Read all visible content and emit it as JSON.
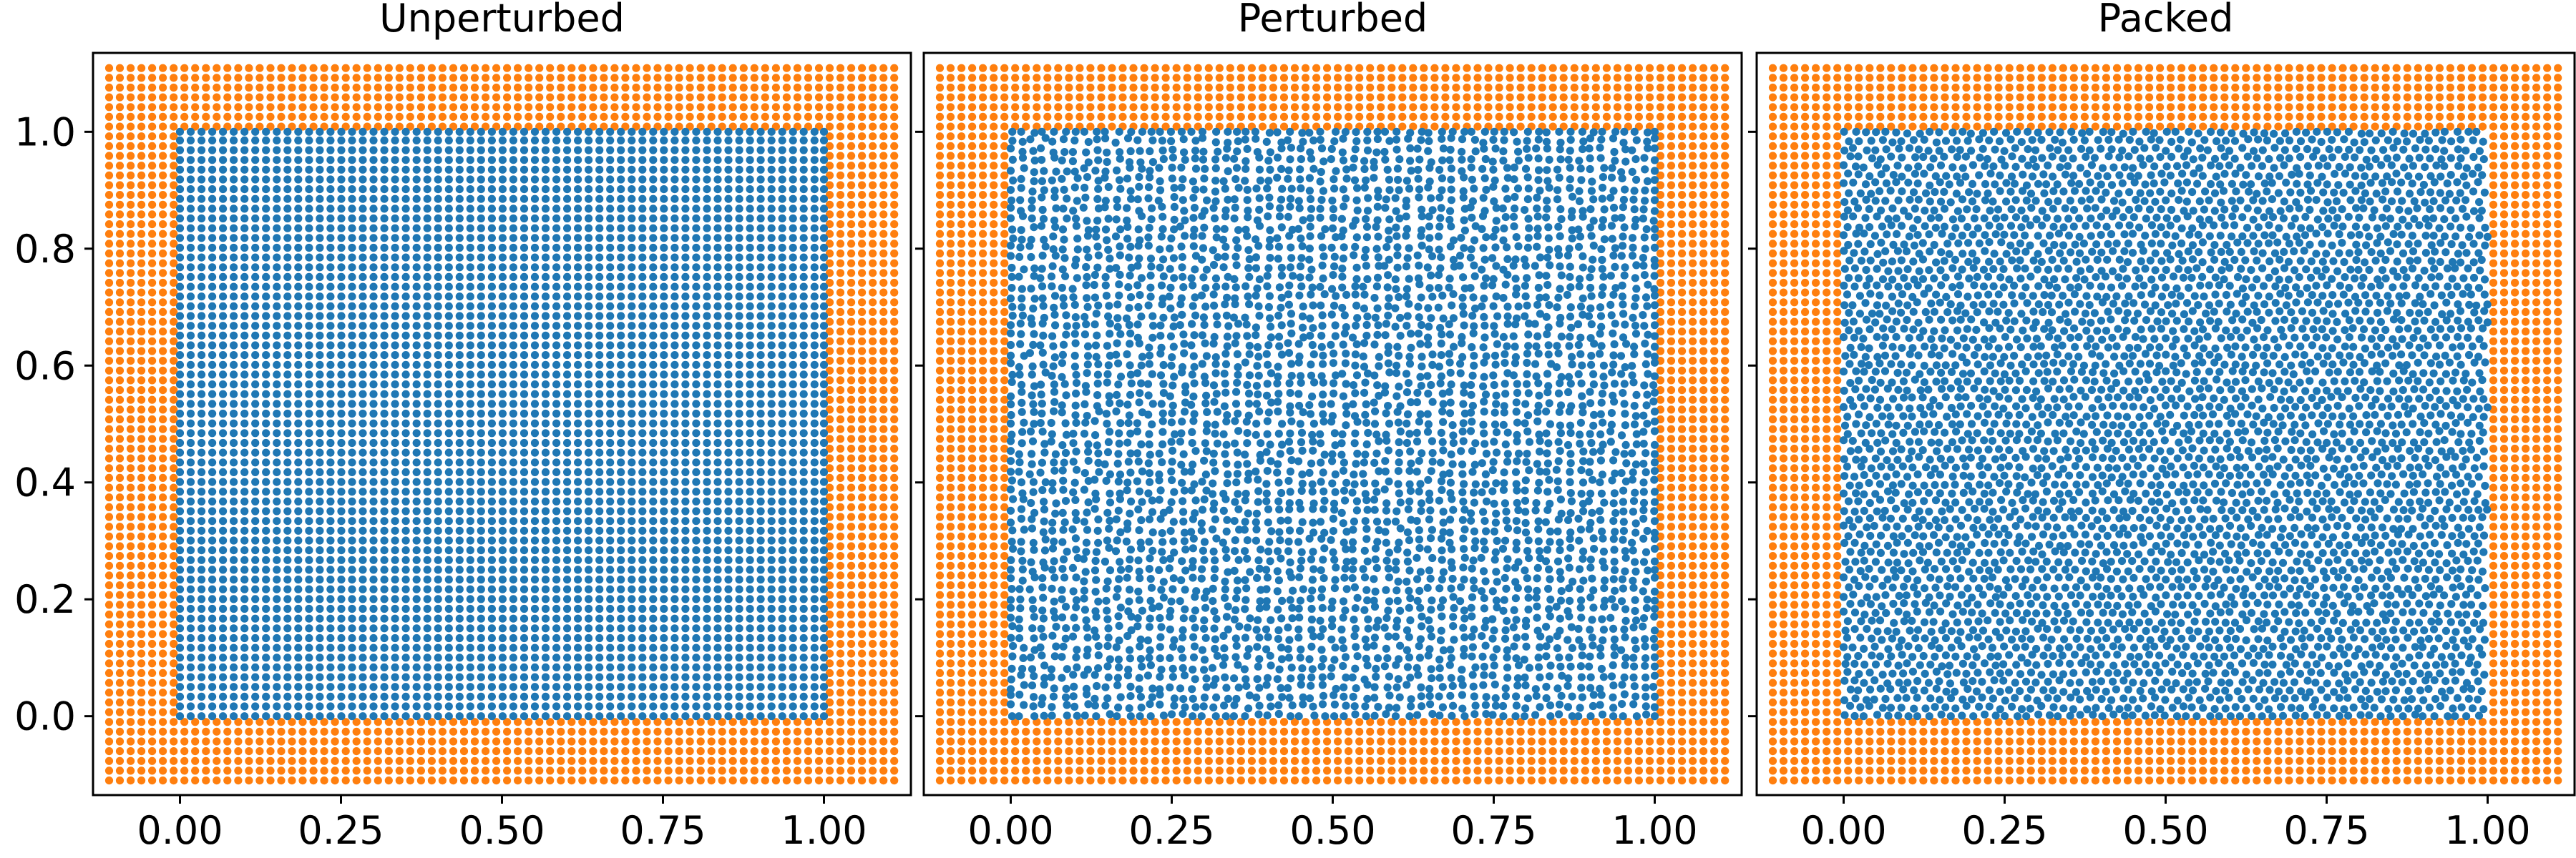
{
  "chart_data": [
    {
      "type": "scatter",
      "title": "Unperturbed",
      "xlabel": "",
      "ylabel": "",
      "xlim": [
        -0.135,
        1.135
      ],
      "ylim": [
        -0.135,
        1.135
      ],
      "xticks": [
        "0.00",
        "0.25",
        "0.50",
        "0.75",
        "1.00"
      ],
      "yticks": [
        "0.0",
        "0.2",
        "0.4",
        "0.6",
        "0.8",
        "1.0"
      ],
      "grid": false,
      "series": [
        {
          "role": "fluid",
          "color": "#1f77b4",
          "region": [
            0.0,
            1.0,
            0.0,
            1.0
          ],
          "spacing": 0.0167,
          "arrangement": "regular lattice"
        },
        {
          "role": "boundary",
          "color": "#ff7f0e",
          "region": [
            -0.11,
            1.11,
            -0.11,
            1.11
          ],
          "spacing": 0.0167,
          "arrangement": "regular lattice, 7 layers surrounding the fluid block"
        }
      ]
    },
    {
      "type": "scatter",
      "title": "Perturbed",
      "xlabel": "",
      "ylabel": "",
      "xlim": [
        -0.135,
        1.135
      ],
      "ylim": [
        -0.135,
        1.135
      ],
      "xticks": [
        "0.00",
        "0.25",
        "0.50",
        "0.75",
        "1.00"
      ],
      "yticks": [
        "0.0",
        "0.2",
        "0.4",
        "0.6",
        "0.8",
        "1.0"
      ],
      "grid": false,
      "series": [
        {
          "role": "fluid",
          "color": "#1f77b4",
          "region": [
            0.0,
            1.0,
            0.0,
            1.0
          ],
          "spacing": 0.0167,
          "arrangement": "lattice with random perturbation"
        },
        {
          "role": "boundary",
          "color": "#ff7f0e",
          "region": [
            -0.11,
            1.11,
            -0.11,
            1.11
          ],
          "spacing": 0.0167,
          "arrangement": "regular lattice, 7 layers surrounding the fluid block"
        }
      ]
    },
    {
      "type": "scatter",
      "title": "Packed",
      "xlabel": "",
      "ylabel": "",
      "xlim": [
        -0.135,
        1.135
      ],
      "ylim": [
        -0.135,
        1.135
      ],
      "xticks": [
        "0.00",
        "0.25",
        "0.50",
        "0.75",
        "1.00"
      ],
      "yticks": [
        "0.0",
        "0.2",
        "0.4",
        "0.6",
        "0.8",
        "1.0"
      ],
      "grid": false,
      "series": [
        {
          "role": "fluid",
          "color": "#1f77b4",
          "region": [
            0.0,
            1.0,
            0.0,
            1.0
          ],
          "spacing": 0.0167,
          "arrangement": "relaxed packed distribution"
        },
        {
          "role": "boundary",
          "color": "#ff7f0e",
          "region": [
            -0.11,
            1.11,
            -0.11,
            1.11
          ],
          "spacing": 0.0167,
          "arrangement": "regular lattice, 7 layers surrounding the fluid block"
        }
      ]
    }
  ]
}
